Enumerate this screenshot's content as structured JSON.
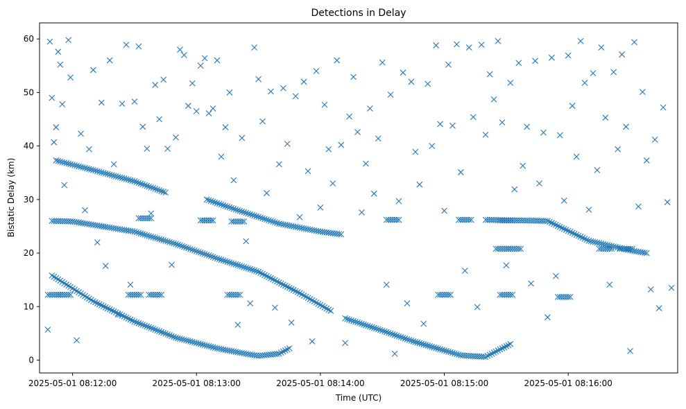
{
  "chart_data": {
    "type": "scatter",
    "title": "Detections in Delay",
    "xlabel": "Time (UTC)",
    "ylabel": "Bistatic Delay (km)",
    "marker": "x",
    "color": "#1f77b4",
    "grid": false,
    "legend": "none",
    "xlim": [
      "2025-05-01 08:11:44",
      "2025-05-01 08:16:53"
    ],
    "ylim": [
      -2.4,
      63
    ],
    "x_ticks": [
      "2025-05-01 08:12:00",
      "2025-05-01 08:13:00",
      "2025-05-01 08:14:00",
      "2025-05-01 08:15:00",
      "2025-05-01 08:16:00"
    ],
    "y_ticks": [
      "0",
      "10",
      "20",
      "30",
      "40",
      "50",
      "60"
    ],
    "tracks": [
      {
        "points": [
          [
            "08:11:50",
            15.8
          ],
          [
            "08:12:10",
            11.0
          ],
          [
            "08:12:30",
            7.2
          ],
          [
            "08:12:50",
            4.2
          ],
          [
            "08:13:10",
            2.2
          ],
          [
            "08:13:25",
            1.1
          ],
          [
            "08:13:30",
            0.8
          ],
          [
            "08:13:40",
            1.2
          ],
          [
            "08:13:45",
            2.2
          ]
        ]
      },
      {
        "points": [
          [
            "08:11:52",
            37.3
          ],
          [
            "08:12:10",
            35.5
          ],
          [
            "08:12:30",
            33.4
          ],
          [
            "08:12:45",
            31.3
          ]
        ]
      },
      {
        "points": [
          [
            "08:11:50",
            26.0
          ],
          [
            "08:12:00",
            25.9
          ],
          [
            "08:12:30",
            24.0
          ],
          [
            "08:12:50",
            21.7
          ],
          [
            "08:13:10",
            19.0
          ],
          [
            "08:13:30",
            16.5
          ],
          [
            "08:13:50",
            12.5
          ],
          [
            "08:14:05",
            9.2
          ]
        ]
      },
      {
        "points": [
          [
            "08:13:05",
            30.0
          ],
          [
            "08:13:20",
            28.0
          ],
          [
            "08:13:40",
            25.5
          ],
          [
            "08:14:00",
            24.0
          ],
          [
            "08:14:10",
            23.5
          ]
        ]
      },
      {
        "points": [
          [
            "08:14:12",
            7.8
          ],
          [
            "08:14:30",
            5.5
          ],
          [
            "08:14:45",
            3.5
          ],
          [
            "08:15:00",
            1.8
          ],
          [
            "08:15:08",
            0.9
          ],
          [
            "08:15:20",
            0.6
          ],
          [
            "08:15:32",
            3.0
          ]
        ]
      },
      {
        "points": [
          [
            "08:15:20",
            26.2
          ],
          [
            "08:15:50",
            26.0
          ],
          [
            "08:16:10",
            22.3
          ],
          [
            "08:16:30",
            20.5
          ],
          [
            "08:16:38",
            20.0
          ]
        ]
      }
    ],
    "clusters": [
      {
        "y": 12.2,
        "points": [
          [
            "08:11:51",
            12.2
          ],
          [
            "08:11:56",
            12.2
          ],
          [
            "08:12:30",
            12.2
          ],
          [
            "08:12:40",
            12.2
          ],
          [
            "08:13:18",
            12.2
          ],
          [
            "08:15:00",
            12.2
          ],
          [
            "08:15:30",
            12.2
          ],
          [
            "08:15:58",
            11.8
          ]
        ]
      },
      {
        "y": 26.2,
        "points": [
          [
            "08:12:35",
            26.5
          ],
          [
            "08:13:05",
            26.1
          ],
          [
            "08:13:20",
            25.9
          ],
          [
            "08:14:35",
            26.2
          ],
          [
            "08:15:10",
            26.2
          ],
          [
            "08:15:30",
            26.1
          ]
        ]
      },
      {
        "y": 20.8,
        "points": [
          [
            "08:15:28",
            20.8
          ],
          [
            "08:15:34",
            20.8
          ],
          [
            "08:16:18",
            20.8
          ],
          [
            "08:16:28",
            20.8
          ]
        ]
      }
    ],
    "noise_points": [
      [
        "08:11:48",
        5.7
      ],
      [
        "08:11:49",
        59.5
      ],
      [
        "08:11:50",
        49.0
      ],
      [
        "08:11:51",
        40.7
      ],
      [
        "08:11:52",
        43.5
      ],
      [
        "08:11:53",
        57.6
      ],
      [
        "08:11:54",
        55.2
      ],
      [
        "08:11:55",
        47.8
      ],
      [
        "08:11:56",
        32.7
      ],
      [
        "08:11:58",
        59.8
      ],
      [
        "08:11:59",
        52.8
      ],
      [
        "08:12:02",
        3.7
      ],
      [
        "08:12:04",
        42.3
      ],
      [
        "08:12:06",
        28.0
      ],
      [
        "08:12:08",
        39.4
      ],
      [
        "08:12:10",
        54.2
      ],
      [
        "08:12:12",
        22.0
      ],
      [
        "08:12:14",
        48.1
      ],
      [
        "08:12:16",
        17.6
      ],
      [
        "08:12:18",
        56.0
      ],
      [
        "08:12:20",
        36.6
      ],
      [
        "08:12:22",
        8.5
      ],
      [
        "08:12:24",
        47.9
      ],
      [
        "08:12:26",
        58.9
      ],
      [
        "08:12:28",
        14.1
      ],
      [
        "08:12:30",
        48.3
      ],
      [
        "08:12:32",
        58.6
      ],
      [
        "08:12:34",
        43.6
      ],
      [
        "08:12:36",
        39.5
      ],
      [
        "08:12:38",
        27.4
      ],
      [
        "08:12:40",
        51.4
      ],
      [
        "08:12:42",
        45.0
      ],
      [
        "08:12:44",
        52.4
      ],
      [
        "08:12:46",
        39.5
      ],
      [
        "08:12:48",
        17.8
      ],
      [
        "08:12:50",
        41.6
      ],
      [
        "08:12:52",
        58.0
      ],
      [
        "08:12:54",
        57.0
      ],
      [
        "08:12:56",
        47.5
      ],
      [
        "08:12:58",
        51.7
      ],
      [
        "08:13:00",
        46.5
      ],
      [
        "08:13:02",
        55.0
      ],
      [
        "08:13:04",
        56.4
      ],
      [
        "08:13:06",
        46.1
      ],
      [
        "08:13:08",
        47.0
      ],
      [
        "08:13:10",
        56.0
      ],
      [
        "08:13:12",
        38.0
      ],
      [
        "08:13:14",
        43.5
      ],
      [
        "08:13:16",
        50.0
      ],
      [
        "08:13:18",
        33.6
      ],
      [
        "08:13:20",
        6.6
      ],
      [
        "08:13:22",
        41.5
      ],
      [
        "08:13:24",
        22.2
      ],
      [
        "08:13:26",
        10.6
      ],
      [
        "08:13:28",
        58.4
      ],
      [
        "08:13:30",
        52.5
      ],
      [
        "08:13:32",
        44.6
      ],
      [
        "08:13:34",
        31.2
      ],
      [
        "08:13:36",
        50.2
      ],
      [
        "08:13:38",
        9.8
      ],
      [
        "08:13:40",
        36.6
      ],
      [
        "08:13:42",
        50.8
      ],
      [
        "08:13:44",
        40.4
      ],
      [
        "08:13:46",
        7.0
      ],
      [
        "08:13:48",
        49.3
      ],
      [
        "08:13:50",
        26.7
      ],
      [
        "08:13:52",
        52.0
      ],
      [
        "08:13:54",
        35.3
      ],
      [
        "08:13:56",
        3.5
      ],
      [
        "08:13:58",
        54.0
      ],
      [
        "08:14:00",
        28.5
      ],
      [
        "08:14:02",
        47.7
      ],
      [
        "08:14:04",
        39.4
      ],
      [
        "08:14:06",
        33.0
      ],
      [
        "08:14:08",
        56.0
      ],
      [
        "08:14:10",
        40.2
      ],
      [
        "08:14:12",
        3.2
      ],
      [
        "08:14:14",
        45.5
      ],
      [
        "08:14:16",
        52.9
      ],
      [
        "08:14:18",
        42.6
      ],
      [
        "08:14:20",
        27.6
      ],
      [
        "08:14:22",
        36.7
      ],
      [
        "08:14:24",
        47.0
      ],
      [
        "08:14:26",
        31.1
      ],
      [
        "08:14:28",
        41.4
      ],
      [
        "08:14:30",
        55.6
      ],
      [
        "08:14:32",
        14.1
      ],
      [
        "08:14:34",
        49.6
      ],
      [
        "08:14:36",
        1.2
      ],
      [
        "08:14:38",
        29.7
      ],
      [
        "08:14:40",
        53.7
      ],
      [
        "08:14:42",
        10.6
      ],
      [
        "08:14:44",
        52.0
      ],
      [
        "08:14:46",
        38.9
      ],
      [
        "08:14:48",
        32.8
      ],
      [
        "08:14:50",
        6.8
      ],
      [
        "08:14:52",
        51.6
      ],
      [
        "08:14:54",
        40.0
      ],
      [
        "08:14:56",
        58.8
      ],
      [
        "08:14:58",
        44.1
      ],
      [
        "08:15:00",
        27.9
      ],
      [
        "08:15:02",
        55.2
      ],
      [
        "08:15:04",
        43.8
      ],
      [
        "08:15:06",
        59.0
      ],
      [
        "08:15:08",
        35.1
      ],
      [
        "08:15:10",
        16.7
      ],
      [
        "08:15:12",
        58.4
      ],
      [
        "08:15:14",
        45.4
      ],
      [
        "08:15:16",
        9.9
      ],
      [
        "08:15:18",
        58.9
      ],
      [
        "08:15:20",
        42.1
      ],
      [
        "08:15:22",
        53.4
      ],
      [
        "08:15:24",
        48.7
      ],
      [
        "08:15:26",
        59.6
      ],
      [
        "08:15:28",
        44.4
      ],
      [
        "08:15:30",
        17.7
      ],
      [
        "08:15:32",
        51.8
      ],
      [
        "08:15:34",
        31.9
      ],
      [
        "08:15:36",
        55.5
      ],
      [
        "08:15:38",
        36.3
      ],
      [
        "08:15:40",
        43.6
      ],
      [
        "08:15:42",
        14.3
      ],
      [
        "08:15:44",
        55.9
      ],
      [
        "08:15:46",
        33.0
      ],
      [
        "08:15:48",
        42.5
      ],
      [
        "08:15:50",
        8.0
      ],
      [
        "08:15:52",
        56.5
      ],
      [
        "08:15:54",
        15.7
      ],
      [
        "08:15:56",
        42.0
      ],
      [
        "08:15:58",
        29.8
      ],
      [
        "08:16:00",
        56.9
      ],
      [
        "08:16:02",
        47.5
      ],
      [
        "08:16:04",
        38.0
      ],
      [
        "08:16:06",
        59.6
      ],
      [
        "08:16:08",
        51.8
      ],
      [
        "08:16:10",
        28.1
      ],
      [
        "08:16:12",
        53.6
      ],
      [
        "08:16:14",
        35.5
      ],
      [
        "08:16:16",
        58.4
      ],
      [
        "08:16:18",
        45.3
      ],
      [
        "08:16:20",
        14.1
      ],
      [
        "08:16:22",
        53.8
      ],
      [
        "08:16:24",
        39.4
      ],
      [
        "08:16:26",
        57.1
      ],
      [
        "08:16:28",
        43.6
      ],
      [
        "08:16:30",
        1.7
      ],
      [
        "08:16:32",
        59.4
      ],
      [
        "08:16:34",
        28.7
      ],
      [
        "08:16:36",
        50.1
      ],
      [
        "08:16:38",
        37.3
      ],
      [
        "08:16:40",
        13.2
      ],
      [
        "08:16:42",
        41.2
      ],
      [
        "08:16:44",
        9.7
      ],
      [
        "08:16:46",
        47.2
      ],
      [
        "08:16:48",
        29.5
      ],
      [
        "08:16:50",
        13.5
      ]
    ]
  }
}
